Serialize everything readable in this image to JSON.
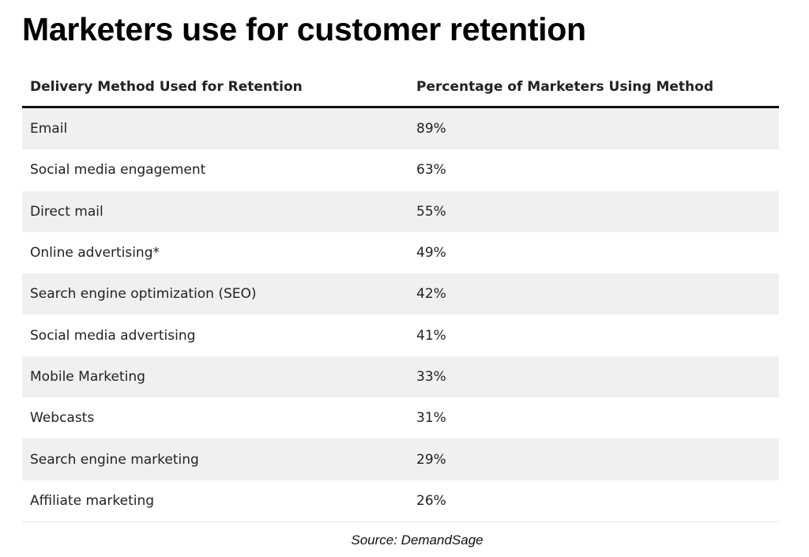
{
  "title": "Marketers use for customer retention",
  "source": "Source: DemandSage",
  "chart_data": {
    "type": "table",
    "title": "Marketers use for customer retention",
    "columns": [
      "Delivery Method Used for Retention",
      "Percentage of Marketers Using Method"
    ],
    "rows": [
      [
        "Email",
        "89%"
      ],
      [
        "Social media engagement",
        "63%"
      ],
      [
        "Direct mail",
        "55%"
      ],
      [
        "Online advertising*",
        "49%"
      ],
      [
        "Search engine optimization (SEO)",
        "42%"
      ],
      [
        "Social media advertising",
        "41%"
      ],
      [
        "Mobile Marketing",
        "33%"
      ],
      [
        "Webcasts",
        "31%"
      ],
      [
        "Search engine marketing",
        "29%"
      ],
      [
        "Affiliate marketing",
        "26%"
      ]
    ],
    "source": "Source: DemandSage",
    "colors": {
      "stripe": "#f0f0f0",
      "header_rule": "#111111"
    }
  }
}
